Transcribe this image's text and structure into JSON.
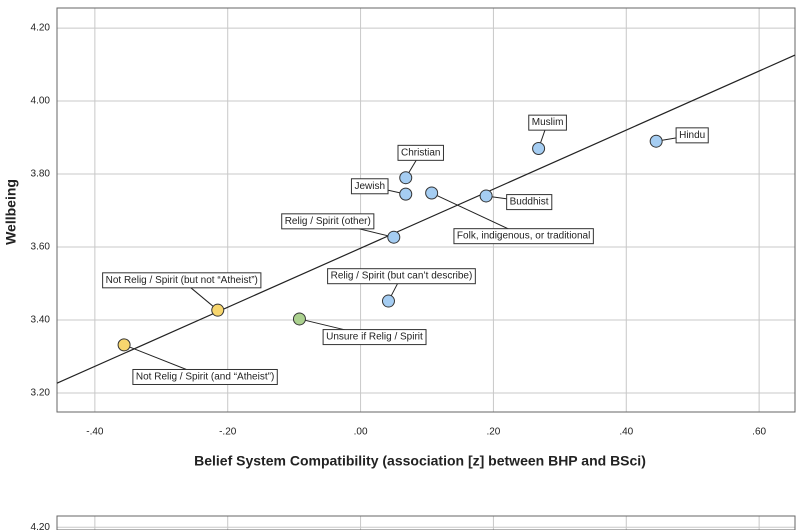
{
  "chart_data": [
    {
      "type": "scatter",
      "x_label": "Belief System Compatibility (association [z] between BHP and BSci)",
      "y_label": "Wellbeing",
      "xlim": [
        -0.457,
        0.654
      ],
      "ylim": [
        3.148,
        4.255
      ],
      "xticks": [
        {
          "value": -0.4,
          "label": "-.40"
        },
        {
          "value": -0.2,
          "label": "-.20"
        },
        {
          "value": 0,
          "label": ".00"
        },
        {
          "value": 0.2,
          "label": ".20"
        },
        {
          "value": 0.4,
          "label": ".40"
        },
        {
          "value": 0.6,
          "label": ".60"
        }
      ],
      "yticks": [
        {
          "value": 3.2,
          "label": "3.20"
        },
        {
          "value": 3.4,
          "label": "3.40"
        },
        {
          "value": 3.6,
          "label": "3.60"
        },
        {
          "value": 3.8,
          "label": "3.80"
        },
        {
          "value": 4.0,
          "label": "4.00"
        },
        {
          "value": 4.2,
          "label": "4.20"
        }
      ],
      "grid": true,
      "points": [
        {
          "label": "Hindu",
          "x": 0.445,
          "y": 3.89,
          "color": "#a5cdf2"
        },
        {
          "label": "Muslim",
          "x": 0.268,
          "y": 3.87,
          "color": "#a5cdf2"
        },
        {
          "label": "Christian",
          "x": 0.068,
          "y": 3.79,
          "color": "#a5cdf2"
        },
        {
          "label": "Jewish",
          "x": 0.068,
          "y": 3.745,
          "color": "#a5cdf2"
        },
        {
          "label": "Folk, indigenous, or traditional",
          "x": 0.107,
          "y": 3.748,
          "color": "#a5cdf2"
        },
        {
          "label": "Buddhist",
          "x": 0.189,
          "y": 3.74,
          "color": "#a5cdf2"
        },
        {
          "label": "Relig / Spirit (other)",
          "x": 0.05,
          "y": 3.627,
          "color": "#a5cdf2"
        },
        {
          "label": "Relig / Spirit (but can’t describe)",
          "x": 0.042,
          "y": 3.452,
          "color": "#a5cdf2"
        },
        {
          "label": "Not Relig / Spirit (but not “Atheist”)",
          "x": -0.215,
          "y": 3.427,
          "color": "#f7d66e"
        },
        {
          "label": "Unsure if Relig / Spirit",
          "x": -0.092,
          "y": 3.403,
          "color": "#abd18f"
        },
        {
          "label": "Not Relig / Spirit (and “Atheist”)",
          "x": -0.356,
          "y": 3.332,
          "color": "#f7d66e"
        }
      ],
      "trend_line": {
        "x": [
          -0.457,
          0.654
        ],
        "y": [
          3.227,
          4.126
        ]
      }
    },
    {
      "type": "scatter",
      "xlim": [
        -0.457,
        0.654
      ],
      "ylim": [
        3.148,
        4.23
      ],
      "yticks": [
        {
          "value": 4.2,
          "label": "4.20"
        }
      ],
      "grid": true
    }
  ]
}
